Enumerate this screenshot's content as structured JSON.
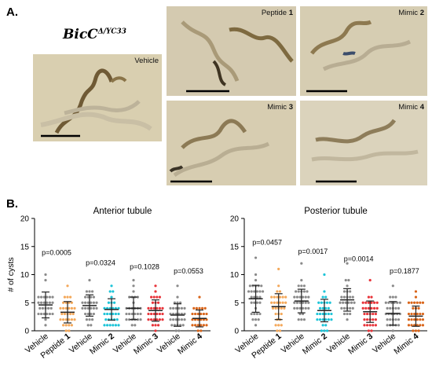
{
  "figure": {
    "panel_a_letter": "A.",
    "panel_b_letter": "B.",
    "genotype_main": "BicC",
    "genotype_sup": "Δ/YC33"
  },
  "photos": [
    {
      "id": "vehicle",
      "label": "Vehicle",
      "bold": ""
    },
    {
      "id": "peptide1",
      "label": "Peptide ",
      "bold": "1"
    },
    {
      "id": "mimic2",
      "label": "Mimic ",
      "bold": "2"
    },
    {
      "id": "mimic3",
      "label": "Mimic ",
      "bold": "3"
    },
    {
      "id": "mimic4",
      "label": "Mimic ",
      "bold": "4"
    }
  ],
  "chart_data": [
    {
      "type": "scatter",
      "title": "Anterior tubule",
      "ylabel": "# of cysts",
      "ylim": [
        0,
        20
      ],
      "yticks": [
        0,
        5,
        10,
        15,
        20
      ],
      "groups": [
        {
          "label": "Vehicle",
          "bold": "",
          "color": "#8a8a8a",
          "mean": 4.6,
          "sd": 2.3,
          "min": 0,
          "max": 10
        },
        {
          "label": "Peptide ",
          "bold": "1",
          "color": "#f4a85a",
          "mean": 3.3,
          "sd": 1.9,
          "min": 0,
          "max": 8
        },
        {
          "label": "Vehicle",
          "bold": "",
          "color": "#8a8a8a",
          "mean": 4.5,
          "sd": 1.9,
          "min": 0,
          "max": 9
        },
        {
          "label": "Mimic ",
          "bold": "2",
          "color": "#1cc4d8",
          "mean": 3.8,
          "sd": 1.9,
          "min": 0,
          "max": 8
        },
        {
          "label": "Vehicle",
          "bold": "",
          "color": "#8a8a8a",
          "mean": 4.0,
          "sd": 2.0,
          "min": 0,
          "max": 9
        },
        {
          "label": "Mimic ",
          "bold": "3",
          "color": "#e8343a",
          "mean": 3.6,
          "sd": 1.9,
          "min": 0,
          "max": 8
        },
        {
          "label": "Vehicle",
          "bold": "",
          "color": "#8a8a8a",
          "mean": 2.8,
          "sd": 2.0,
          "min": 0,
          "max": 8
        },
        {
          "label": "Mimic ",
          "bold": "4",
          "color": "#d9651a",
          "mean": 2.2,
          "sd": 1.5,
          "min": 0,
          "max": 6
        }
      ],
      "pvalues": [
        "p=0.0005",
        "p=0.0324",
        "p=0.1028",
        "p=0.0553"
      ],
      "pvalue_y": [
        13.5,
        11.7,
        11.0,
        10.2
      ]
    },
    {
      "type": "scatter",
      "title": "Posterior tubule",
      "ylabel": "",
      "ylim": [
        0,
        20
      ],
      "yticks": [
        0,
        5,
        10,
        15,
        20
      ],
      "groups": [
        {
          "label": "Vehicle",
          "bold": "",
          "color": "#8a8a8a",
          "mean": 5.7,
          "sd": 2.4,
          "min": 1,
          "max": 13
        },
        {
          "label": "Peptide ",
          "bold": "1",
          "color": "#f4a85a",
          "mean": 4.3,
          "sd": 2.3,
          "min": 0,
          "max": 11
        },
        {
          "label": "Vehicle",
          "bold": "",
          "color": "#8a8a8a",
          "mean": 5.3,
          "sd": 2.1,
          "min": 0,
          "max": 12
        },
        {
          "label": "Mimic ",
          "bold": "2",
          "color": "#1cc4d8",
          "mean": 3.6,
          "sd": 2.0,
          "min": 0,
          "max": 10
        },
        {
          "label": "Vehicle",
          "bold": "",
          "color": "#8a8a8a",
          "mean": 5.5,
          "sd": 2.0,
          "min": 0,
          "max": 12
        },
        {
          "label": "Mimic ",
          "bold": "3",
          "color": "#e8343a",
          "mean": 3.4,
          "sd": 1.9,
          "min": 0,
          "max": 9
        },
        {
          "label": "Vehicle",
          "bold": "",
          "color": "#8a8a8a",
          "mean": 3.1,
          "sd": 2.1,
          "min": 0,
          "max": 8
        },
        {
          "label": "Mimic ",
          "bold": "4",
          "color": "#d9651a",
          "mean": 2.6,
          "sd": 1.8,
          "min": 0,
          "max": 7
        }
      ],
      "pvalues": [
        "p=0.0457",
        "p=0.0017",
        "p=0.0014",
        "p=0.1877"
      ],
      "pvalue_y": [
        15.3,
        13.7,
        12.4,
        10.2
      ]
    }
  ]
}
